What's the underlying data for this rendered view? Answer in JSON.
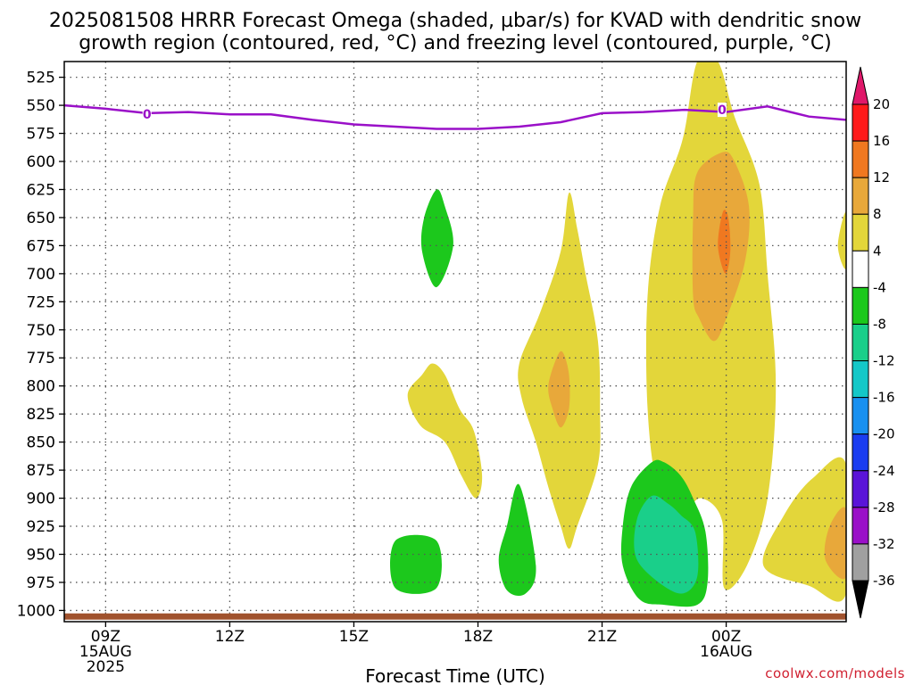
{
  "title_line1": "2025081508 HRRR Forecast Omega (shaded, µbar/s) for KVAD with dendritic snow",
  "title_line2": "growth region (contoured, red, °C) and freezing level (contoured, purple, °C)",
  "xlabel": "Forecast Time (UTC)",
  "watermark": "coolwx.com/models",
  "colors": {
    "freezing_level": "#9a10c8",
    "ground": "#a0522d",
    "grid": "#555555"
  },
  "chart_data": {
    "type": "contour",
    "x_unit": "hours from 2025-08-15 08Z",
    "x_range": [
      8,
      26.9
    ],
    "y_range": [
      1010,
      511
    ],
    "y_ticks": [
      525,
      550,
      575,
      600,
      625,
      650,
      675,
      700,
      725,
      750,
      775,
      800,
      825,
      850,
      875,
      900,
      925,
      950,
      975,
      1000
    ],
    "x_ticks": [
      {
        "t": 9,
        "l1": "09Z",
        "l2": "15AUG",
        "l3": "2025"
      },
      {
        "t": 12,
        "l1": "12Z",
        "l2": "",
        "l3": ""
      },
      {
        "t": 15,
        "l1": "15Z",
        "l2": "",
        "l3": ""
      },
      {
        "t": 18,
        "l1": "18Z",
        "l2": "",
        "l3": ""
      },
      {
        "t": 21,
        "l1": "21Z",
        "l2": "",
        "l3": ""
      },
      {
        "t": 24,
        "l1": "00Z",
        "l2": "16AUG",
        "l3": ""
      }
    ],
    "colorbar": {
      "levels": [
        20,
        16,
        12,
        8,
        4,
        -4,
        -8,
        -12,
        -16,
        -20,
        -24,
        -28,
        -32,
        -36
      ],
      "bands": [
        "#ff1a1a",
        "#f07820",
        "#e8a83a",
        "#e3d63a",
        "#ffffff",
        "#1cc81c",
        "#1acf8a",
        "#14c8c8",
        "#1890f0",
        "#1a3cf0",
        "#5a14d8",
        "#9a10c8",
        "#a0a0a0"
      ],
      "top_arrow": "#e0186a",
      "bottom_arrow": "#000000"
    },
    "freezing_level": {
      "label": "0",
      "label_points": [
        [
          10,
          558
        ],
        [
          23.9,
          554
        ]
      ],
      "points": [
        [
          8,
          550
        ],
        [
          9,
          553
        ],
        [
          10,
          557
        ],
        [
          11,
          556
        ],
        [
          12,
          558
        ],
        [
          13,
          558
        ],
        [
          14,
          563
        ],
        [
          15,
          567
        ],
        [
          16,
          569
        ],
        [
          17,
          571
        ],
        [
          18,
          571
        ],
        [
          19,
          569
        ],
        [
          20,
          565
        ],
        [
          21,
          557
        ],
        [
          22,
          556
        ],
        [
          23,
          554
        ],
        [
          24,
          556
        ],
        [
          25,
          551
        ],
        [
          26,
          560
        ],
        [
          26.9,
          563
        ]
      ]
    },
    "omega_regions": [
      {
        "value": 6,
        "color": "#e3d63a",
        "points": [
          [
            23.3,
            511
          ],
          [
            22.95,
            580
          ],
          [
            22.4,
            640
          ],
          [
            22.1,
            720
          ],
          [
            22.1,
            820
          ],
          [
            22.35,
            890
          ],
          [
            22.9,
            912
          ],
          [
            23.4,
            900
          ],
          [
            23.9,
            920
          ],
          [
            23.95,
            980
          ],
          [
            24.5,
            960
          ],
          [
            25.0,
            900
          ],
          [
            25.2,
            800
          ],
          [
            25.0,
            700
          ],
          [
            24.8,
            620
          ],
          [
            24.2,
            560
          ],
          [
            23.8,
            511
          ]
        ]
      },
      {
        "value": 6,
        "color": "#e3d63a",
        "points": [
          [
            26.1,
            882
          ],
          [
            25.4,
            915
          ],
          [
            24.9,
            960
          ],
          [
            26.0,
            978
          ],
          [
            26.9,
            985
          ],
          [
            26.9,
            870
          ]
        ]
      },
      {
        "value": 6,
        "color": "#e3d63a",
        "points": [
          [
            26.9,
            645
          ],
          [
            26.7,
            675
          ],
          [
            26.9,
            695
          ]
        ]
      },
      {
        "value": 6,
        "color": "#e3d63a",
        "points": [
          [
            20.2,
            628
          ],
          [
            20.0,
            680
          ],
          [
            19.5,
            735
          ],
          [
            19.0,
            780
          ],
          [
            19.05,
            810
          ],
          [
            19.4,
            850
          ],
          [
            19.7,
            890
          ],
          [
            20.0,
            925
          ],
          [
            20.2,
            945
          ],
          [
            20.4,
            925
          ],
          [
            20.9,
            870
          ],
          [
            20.95,
            820
          ],
          [
            20.9,
            760
          ],
          [
            20.6,
            700
          ],
          [
            20.4,
            660
          ]
        ]
      },
      {
        "value": 6,
        "color": "#e3d63a",
        "points": [
          [
            16.65,
            790
          ],
          [
            16.3,
            808
          ],
          [
            16.6,
            835
          ],
          [
            17.2,
            850
          ],
          [
            17.6,
            880
          ],
          [
            17.95,
            900
          ],
          [
            18.1,
            880
          ],
          [
            17.9,
            840
          ],
          [
            17.55,
            820
          ],
          [
            17.2,
            790
          ],
          [
            16.9,
            780
          ]
        ]
      },
      {
        "value": 10,
        "color": "#e8a83a",
        "points": [
          [
            23.3,
            610
          ],
          [
            23.2,
            650
          ],
          [
            23.2,
            720
          ],
          [
            23.35,
            740
          ],
          [
            23.7,
            760
          ],
          [
            24.0,
            740
          ],
          [
            24.45,
            690
          ],
          [
            24.55,
            640
          ],
          [
            24.2,
            600
          ],
          [
            23.9,
            592
          ]
        ]
      },
      {
        "value": 10,
        "color": "#e8a83a",
        "points": [
          [
            26.9,
            910
          ],
          [
            26.5,
            925
          ],
          [
            26.4,
            955
          ],
          [
            26.9,
            970
          ]
        ]
      },
      {
        "value": 10,
        "color": "#e8a83a",
        "points": [
          [
            19.9,
            775
          ],
          [
            19.7,
            800
          ],
          [
            19.8,
            820
          ],
          [
            20.0,
            837
          ],
          [
            20.2,
            820
          ],
          [
            20.2,
            790
          ],
          [
            20.05,
            770
          ]
        ]
      },
      {
        "value": 14,
        "color": "#f07820",
        "points": [
          [
            23.92,
            645
          ],
          [
            23.8,
            675
          ],
          [
            23.98,
            700
          ],
          [
            24.1,
            680
          ],
          [
            24.05,
            650
          ]
        ]
      },
      {
        "value": -6,
        "color": "#1cc81c",
        "points": [
          [
            17.0,
            625
          ],
          [
            16.7,
            650
          ],
          [
            16.65,
            680
          ],
          [
            17.0,
            712
          ],
          [
            17.4,
            675
          ],
          [
            17.2,
            640
          ]
        ]
      },
      {
        "value": -6,
        "color": "#1cc81c",
        "points": [
          [
            16.0,
            938
          ],
          [
            16.0,
            980
          ],
          [
            17.0,
            980
          ],
          [
            17.0,
            938
          ]
        ]
      },
      {
        "value": -6,
        "color": "#1cc81c",
        "points": [
          [
            19.0,
            888
          ],
          [
            18.7,
            925
          ],
          [
            18.5,
            955
          ],
          [
            18.7,
            982
          ],
          [
            19.15,
            985
          ],
          [
            19.4,
            960
          ]
        ]
      },
      {
        "value": -6,
        "color": "#1cc81c",
        "points": [
          [
            22.2,
            868
          ],
          [
            21.7,
            890
          ],
          [
            21.5,
            925
          ],
          [
            21.5,
            960
          ],
          [
            21.9,
            990
          ],
          [
            22.5,
            995
          ],
          [
            23.3,
            995
          ],
          [
            23.55,
            975
          ],
          [
            23.5,
            930
          ],
          [
            23.2,
            900
          ],
          [
            22.9,
            880
          ],
          [
            22.5,
            868
          ]
        ]
      },
      {
        "value": -10,
        "color": "#1acf8a",
        "points": [
          [
            22.2,
            898
          ],
          [
            21.85,
            918
          ],
          [
            21.8,
            950
          ],
          [
            22.2,
            970
          ],
          [
            22.9,
            985
          ],
          [
            23.3,
            970
          ],
          [
            23.25,
            930
          ],
          [
            22.9,
            915
          ],
          [
            22.6,
            905
          ]
        ]
      }
    ],
    "ground": {
      "pressure": 1005
    }
  }
}
